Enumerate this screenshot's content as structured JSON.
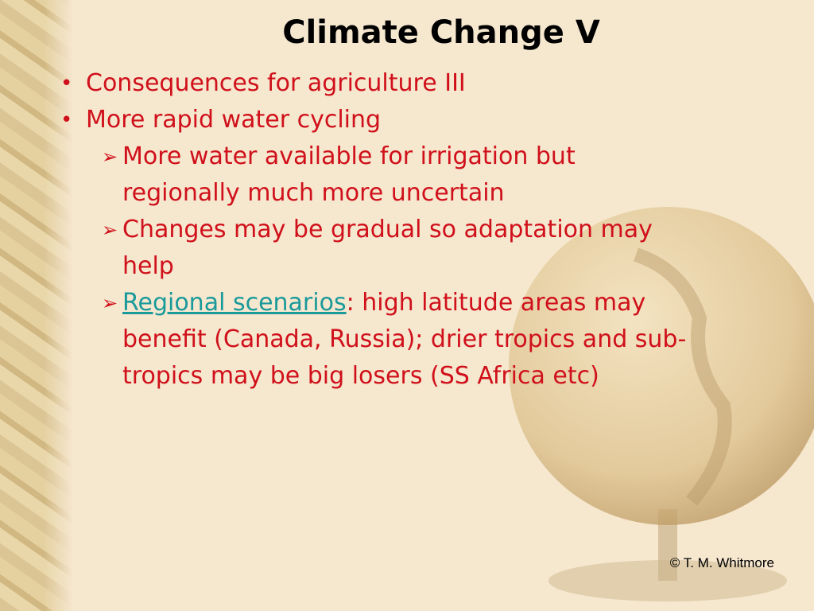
{
  "title": "Climate Change V",
  "bullets": [
    "Consequences for agriculture III",
    "More rapid water cycling"
  ],
  "sub_bullets": [
    {
      "text": "More water available for irrigation but regionally much more uncertain"
    },
    {
      "text": "Changes may be gradual so adaptation may help"
    },
    {
      "link": "Regional scenarios",
      "text": ": high latitude areas may benefit (Canada, Russia); drier tropics and sub-tropics may be big losers (SS Africa etc)"
    }
  ],
  "footer": "© T. M. Whitmore"
}
